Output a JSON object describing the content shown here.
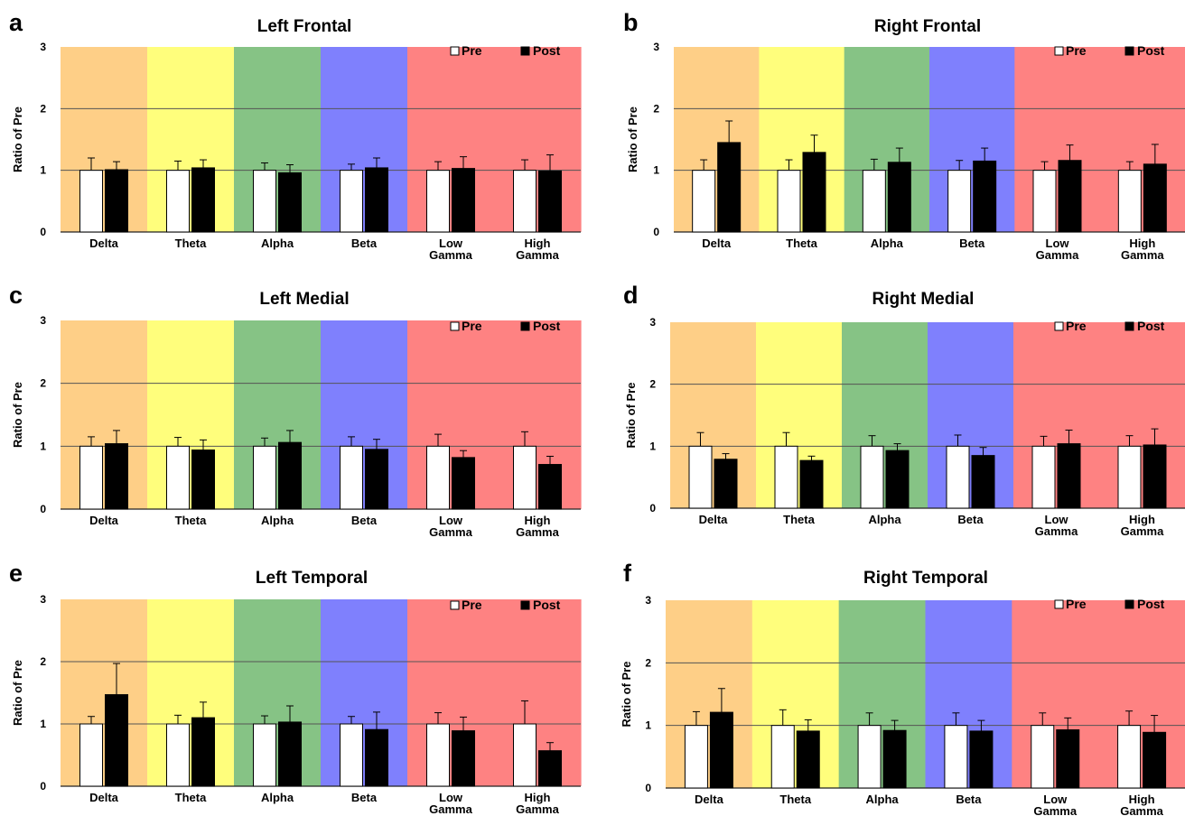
{
  "chart_data": [
    {
      "type": "bar",
      "panel_label": "a",
      "title": "Left Frontal",
      "ylabel": "Ratio of Pre",
      "ylim": [
        0,
        3
      ],
      "yticks": [
        "0",
        "1",
        "2",
        "3"
      ],
      "categories": [
        "Delta",
        "Theta",
        "Alpha",
        "Beta",
        "Low\nGamma",
        "High\nGamma"
      ],
      "series": [
        {
          "name": "Pre",
          "color": "#ffffff",
          "values": [
            1,
            1,
            1,
            1,
            1,
            1
          ],
          "errors": [
            0.2,
            0.15,
            0.12,
            0.1,
            0.14,
            0.17
          ]
        },
        {
          "name": "Post",
          "color": "#000000",
          "values": [
            1.01,
            1.04,
            0.96,
            1.04,
            1.03,
            0.99
          ],
          "errors": [
            0.13,
            0.13,
            0.13,
            0.16,
            0.19,
            0.26
          ]
        }
      ],
      "background_band_colors": [
        "#fecf87",
        "#fffe7c",
        "#86c385",
        "#7f80fd",
        "#fe8282",
        "#fe8282"
      ],
      "gridlines": [
        1,
        2
      ],
      "legend": "top-right"
    },
    {
      "type": "bar",
      "panel_label": "b",
      "title": "Right Frontal",
      "ylabel": "Ratio of Pre",
      "ylim": [
        0,
        3
      ],
      "yticks": [
        "0",
        "1",
        "2",
        "3"
      ],
      "categories": [
        "Delta",
        "Theta",
        "Alpha",
        "Beta",
        "Low\nGamma",
        "High\nGamma"
      ],
      "series": [
        {
          "name": "Pre",
          "color": "#ffffff",
          "values": [
            1,
            1,
            1,
            1,
            1,
            1
          ],
          "errors": [
            0.17,
            0.17,
            0.18,
            0.16,
            0.14,
            0.14
          ]
        },
        {
          "name": "Post",
          "color": "#000000",
          "values": [
            1.45,
            1.29,
            1.13,
            1.15,
            1.16,
            1.1
          ],
          "errors": [
            0.35,
            0.28,
            0.23,
            0.21,
            0.25,
            0.32
          ]
        }
      ],
      "background_band_colors": [
        "#fecf87",
        "#fffe7c",
        "#86c385",
        "#7f80fd",
        "#fe8282",
        "#fe8282"
      ],
      "gridlines": [
        1,
        2
      ],
      "legend": "top-right"
    },
    {
      "type": "bar",
      "panel_label": "c",
      "title": "Left Medial",
      "ylabel": "Ratio of Pre",
      "ylim": [
        0,
        3
      ],
      "yticks": [
        "0",
        "1",
        "2",
        "3"
      ],
      "categories": [
        "Delta",
        "Theta",
        "Alpha",
        "Beta",
        "Low\nGamma",
        "High\nGamma"
      ],
      "series": [
        {
          "name": "Pre",
          "color": "#ffffff",
          "values": [
            1,
            1,
            1,
            1,
            1,
            1
          ],
          "errors": [
            0.15,
            0.14,
            0.13,
            0.15,
            0.19,
            0.23
          ]
        },
        {
          "name": "Post",
          "color": "#000000",
          "values": [
            1.04,
            0.94,
            1.06,
            0.95,
            0.82,
            0.71
          ],
          "errors": [
            0.21,
            0.16,
            0.19,
            0.16,
            0.11,
            0.13
          ]
        }
      ],
      "background_band_colors": [
        "#fecf87",
        "#fffe7c",
        "#86c385",
        "#7f80fd",
        "#fe8282",
        "#fe8282"
      ],
      "gridlines": [
        1,
        2
      ],
      "legend": "top-right"
    },
    {
      "type": "bar",
      "panel_label": "d",
      "title": "Right Medial",
      "ylabel": "Ratio of Pre",
      "ylim": [
        0,
        3
      ],
      "yticks": [
        "0",
        "1",
        "2",
        "3"
      ],
      "categories": [
        "Delta",
        "Theta",
        "Alpha",
        "Beta",
        "Low\nGamma",
        "High\nGamma"
      ],
      "series": [
        {
          "name": "Pre",
          "color": "#ffffff",
          "values": [
            1,
            1,
            1,
            1,
            1,
            1
          ],
          "errors": [
            0.22,
            0.22,
            0.17,
            0.18,
            0.16,
            0.17
          ]
        },
        {
          "name": "Post",
          "color": "#000000",
          "values": [
            0.79,
            0.77,
            0.93,
            0.85,
            1.04,
            1.02
          ],
          "errors": [
            0.09,
            0.07,
            0.11,
            0.13,
            0.22,
            0.26
          ]
        }
      ],
      "background_band_colors": [
        "#fecf87",
        "#fffe7c",
        "#86c385",
        "#7f80fd",
        "#fe8282",
        "#fe8282"
      ],
      "gridlines": [
        1,
        2
      ],
      "legend": "top-right"
    },
    {
      "type": "bar",
      "panel_label": "e",
      "title": "Left Temporal",
      "ylabel": "Ratio of Pre",
      "ylim": [
        0,
        3
      ],
      "yticks": [
        "0",
        "1",
        "2",
        "3"
      ],
      "categories": [
        "Delta",
        "Theta",
        "Alpha",
        "Beta",
        "Low\nGamma",
        "High\nGamma"
      ],
      "series": [
        {
          "name": "Pre",
          "color": "#ffffff",
          "values": [
            1,
            1,
            1,
            1,
            1,
            1
          ],
          "errors": [
            0.12,
            0.14,
            0.13,
            0.12,
            0.18,
            0.37
          ]
        },
        {
          "name": "Post",
          "color": "#000000",
          "values": [
            1.47,
            1.1,
            1.03,
            0.91,
            0.89,
            0.57
          ],
          "errors": [
            0.5,
            0.25,
            0.26,
            0.28,
            0.22,
            0.13
          ]
        }
      ],
      "background_band_colors": [
        "#fecf87",
        "#fffe7c",
        "#86c385",
        "#7f80fd",
        "#fe8282",
        "#fe8282"
      ],
      "gridlines": [
        1,
        2
      ],
      "legend": "top-right"
    },
    {
      "type": "bar",
      "panel_label": "f",
      "title": "Right Temporal",
      "ylabel": "Ratio of Pre",
      "ylim": [
        0,
        3
      ],
      "yticks": [
        "0",
        "1",
        "2",
        "3"
      ],
      "categories": [
        "Delta",
        "Theta",
        "Alpha",
        "Beta",
        "Low\nGamma",
        "High\nGamma"
      ],
      "series": [
        {
          "name": "Pre",
          "color": "#ffffff",
          "values": [
            1,
            1,
            1,
            1,
            1,
            1
          ],
          "errors": [
            0.22,
            0.25,
            0.2,
            0.2,
            0.2,
            0.23
          ]
        },
        {
          "name": "Post",
          "color": "#000000",
          "values": [
            1.21,
            0.91,
            0.92,
            0.91,
            0.93,
            0.89
          ],
          "errors": [
            0.38,
            0.18,
            0.16,
            0.17,
            0.19,
            0.27
          ]
        }
      ],
      "background_band_colors": [
        "#fecf87",
        "#fffe7c",
        "#86c385",
        "#7f80fd",
        "#fe8282",
        "#fe8282"
      ],
      "gridlines": [
        1,
        2
      ],
      "legend": "top-right"
    }
  ]
}
